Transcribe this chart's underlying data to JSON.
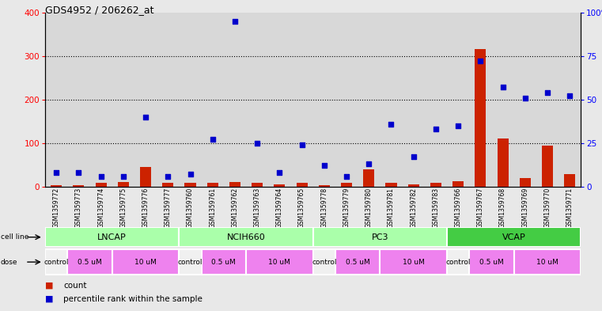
{
  "title": "GDS4952 / 206262_at",
  "samples": [
    "GSM1359772",
    "GSM1359773",
    "GSM1359774",
    "GSM1359775",
    "GSM1359776",
    "GSM1359777",
    "GSM1359760",
    "GSM1359761",
    "GSM1359762",
    "GSM1359763",
    "GSM1359764",
    "GSM1359765",
    "GSM1359778",
    "GSM1359779",
    "GSM1359780",
    "GSM1359781",
    "GSM1359782",
    "GSM1359783",
    "GSM1359766",
    "GSM1359767",
    "GSM1359768",
    "GSM1359769",
    "GSM1359770",
    "GSM1359771"
  ],
  "counts": [
    3,
    3,
    8,
    10,
    45,
    8,
    8,
    8,
    10,
    8,
    5,
    8,
    3,
    8,
    40,
    8,
    5,
    8,
    12,
    315,
    110,
    20,
    95,
    28
  ],
  "percentiles": [
    8,
    8,
    6,
    6,
    40,
    6,
    7,
    27,
    95,
    25,
    8,
    24,
    12,
    6,
    13,
    36,
    17,
    33,
    35,
    72,
    57,
    51,
    54,
    52
  ],
  "bar_color": "#cc2200",
  "dot_color": "#0000cc",
  "left_ylim": [
    0,
    400
  ],
  "right_ylim": [
    0,
    100
  ],
  "left_yticks": [
    0,
    100,
    200,
    300,
    400
  ],
  "right_yticks": [
    0,
    25,
    50,
    75,
    100
  ],
  "right_yticklabels": [
    "0",
    "25",
    "50",
    "75",
    "100%"
  ],
  "cell_line_names": [
    "LNCAP",
    "NCIH660",
    "PC3",
    "VCAP"
  ],
  "cell_line_starts": [
    0,
    6,
    12,
    18
  ],
  "cell_line_ends": [
    6,
    12,
    18,
    24
  ],
  "cell_line_colors": [
    "#aaffaa",
    "#aaffaa",
    "#aaffaa",
    "#44cc44"
  ],
  "dose_labels": [
    "control",
    "0.5 uM",
    "10 uM",
    "control",
    "0.5 uM",
    "10 uM",
    "control",
    "0.5 uM",
    "10 uM",
    "control",
    "0.5 uM",
    "10 uM"
  ],
  "dose_starts": [
    0,
    1,
    3,
    6,
    7,
    9,
    12,
    13,
    15,
    18,
    19,
    21
  ],
  "dose_ends": [
    1,
    3,
    6,
    7,
    9,
    12,
    13,
    15,
    18,
    19,
    21,
    24
  ],
  "dose_colors": [
    "#f0f0f0",
    "#ee82ee",
    "#ee82ee",
    "#f0f0f0",
    "#ee82ee",
    "#ee82ee",
    "#f0f0f0",
    "#ee82ee",
    "#ee82ee",
    "#f0f0f0",
    "#ee82ee",
    "#ee82ee"
  ],
  "fig_bg": "#e8e8e8",
  "plot_bg": "#ffffff",
  "col_bg": "#d8d8d8"
}
